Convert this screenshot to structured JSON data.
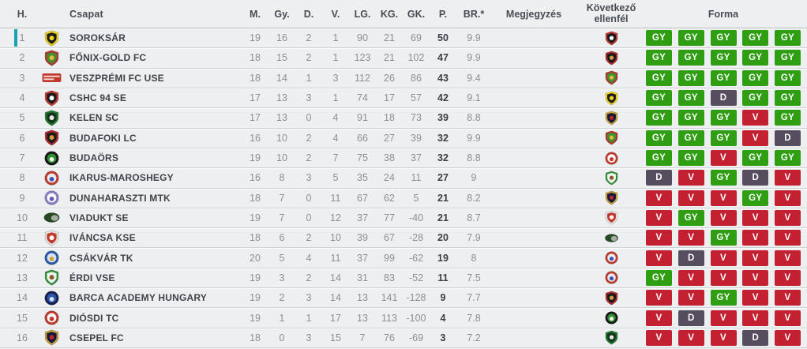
{
  "header": {
    "pos": "H.",
    "team": "Csapat",
    "m": "M.",
    "gy": "Gy.",
    "d": "D.",
    "v": "V.",
    "lg": "LG.",
    "kg": "KG.",
    "gk": "GK.",
    "p": "P.",
    "br": "BR.*",
    "notes": "Megjegyzés",
    "next": "Következő ellenfél",
    "form": "Forma"
  },
  "form_colors": {
    "GY": "#2f9e12",
    "D": "#564d5e",
    "V": "#c32031"
  },
  "accent": {
    "highlight_bar": "#18a2b5",
    "row_line": "#ccd1d4",
    "muted_text": "#8b9096",
    "dark_text": "#3f444a"
  },
  "teams": {
    "soroksar": {
      "shape": "shield",
      "colors": [
        "#f0d41c",
        "#1c1c1c",
        "#f0d41c"
      ]
    },
    "fonix": {
      "shape": "shield",
      "colors": [
        "#b8332a",
        "#3f8f35",
        "#e3bc2e"
      ]
    },
    "veszprem": {
      "shape": "banner",
      "colors": [
        "#c0392b",
        "#ffffff"
      ]
    },
    "cshc": {
      "shape": "shield",
      "colors": [
        "#c23a30",
        "#1a1a1a",
        "#ffffff"
      ]
    },
    "kelen": {
      "shape": "shield",
      "colors": [
        "#1e7a2e",
        "#17351c",
        "#e8e8e8"
      ]
    },
    "budafoki": {
      "shape": "shield",
      "colors": [
        "#b3282d",
        "#1a1a1a",
        "#cf9e3d"
      ]
    },
    "budaors": {
      "shape": "circle",
      "colors": [
        "#141414",
        "#2e8f2e",
        "#f2f2f2"
      ]
    },
    "ikarus": {
      "shape": "circle",
      "colors": [
        "#c0392b",
        "#e8edf4",
        "#3b4fae"
      ]
    },
    "dunaharaszti": {
      "shape": "circle",
      "colors": [
        "#8a7ec2",
        "#ffffff",
        "#6a5bb0"
      ]
    },
    "viadukt": {
      "shape": "oval",
      "colors": [
        "#24481f",
        "#a8aaa4"
      ]
    },
    "ivancsa": {
      "shape": "shield",
      "colors": [
        "#e8e8e8",
        "#c0392b",
        "#ffffff"
      ]
    },
    "csakvar": {
      "shape": "circle",
      "colors": [
        "#2b58a8",
        "#d9e4f0",
        "#c9a23a"
      ]
    },
    "erdi": {
      "shape": "shield",
      "colors": [
        "#2f8f3b",
        "#eef3ee",
        "#8a5a2b"
      ]
    },
    "barca": {
      "shape": "circle",
      "colors": [
        "#16204f",
        "#2f57a8",
        "#d7e0ec"
      ]
    },
    "diosdi": {
      "shape": "circle",
      "colors": [
        "#c0392b",
        "#ffffff",
        "#c0392b"
      ]
    },
    "csepel": {
      "shape": "shield",
      "colors": [
        "#c9a23a",
        "#14163a",
        "#b3282d"
      ]
    }
  },
  "rows": [
    {
      "pos": 1,
      "team": "soroksar",
      "name": "SOROKSÁR",
      "m": 19,
      "gy": 16,
      "d": 2,
      "v": 1,
      "lg": 90,
      "kg": 21,
      "gk": 69,
      "p": 50,
      "br": "9.9",
      "notes": "",
      "next": "cshc",
      "form": [
        "GY",
        "GY",
        "GY",
        "GY",
        "GY"
      ],
      "highlight": true
    },
    {
      "pos": 2,
      "team": "fonix",
      "name": "FŐNIX-GOLD FC",
      "m": 18,
      "gy": 15,
      "d": 2,
      "v": 1,
      "lg": 123,
      "kg": 21,
      "gk": 102,
      "p": 47,
      "br": "9.9",
      "notes": "",
      "next": "budafoki",
      "form": [
        "GY",
        "GY",
        "GY",
        "GY",
        "GY"
      ],
      "highlight": false
    },
    {
      "pos": 3,
      "team": "veszprem",
      "name": "VESZPRÉMI FC USE",
      "m": 18,
      "gy": 14,
      "d": 1,
      "v": 3,
      "lg": 112,
      "kg": 26,
      "gk": 86,
      "p": 43,
      "br": "9.4",
      "notes": "",
      "next": "fonix",
      "form": [
        "GY",
        "GY",
        "GY",
        "GY",
        "GY"
      ],
      "highlight": false
    },
    {
      "pos": 4,
      "team": "cshc",
      "name": "CSHC 94 SE",
      "m": 17,
      "gy": 13,
      "d": 3,
      "v": 1,
      "lg": 74,
      "kg": 17,
      "gk": 57,
      "p": 42,
      "br": "9.1",
      "notes": "",
      "next": "soroksar",
      "form": [
        "GY",
        "GY",
        "D",
        "GY",
        "GY"
      ],
      "highlight": false
    },
    {
      "pos": 5,
      "team": "kelen",
      "name": "KELEN SC",
      "m": 17,
      "gy": 13,
      "d": 0,
      "v": 4,
      "lg": 91,
      "kg": 18,
      "gk": 73,
      "p": 39,
      "br": "8.8",
      "notes": "",
      "next": "csepel",
      "form": [
        "GY",
        "GY",
        "GY",
        "V",
        "GY"
      ],
      "highlight": false
    },
    {
      "pos": 6,
      "team": "budafoki",
      "name": "BUDAFOKI LC",
      "m": 16,
      "gy": 10,
      "d": 2,
      "v": 4,
      "lg": 66,
      "kg": 27,
      "gk": 39,
      "p": 32,
      "br": "9.9",
      "notes": "",
      "next": "fonix",
      "form": [
        "GY",
        "GY",
        "GY",
        "V",
        "D"
      ],
      "highlight": false
    },
    {
      "pos": 7,
      "team": "budaors",
      "name": "BUDAÖRS",
      "m": 19,
      "gy": 10,
      "d": 2,
      "v": 7,
      "lg": 75,
      "kg": 38,
      "gk": 37,
      "p": 32,
      "br": "8.8",
      "notes": "",
      "next": "diosdi",
      "form": [
        "GY",
        "GY",
        "V",
        "GY",
        "GY"
      ],
      "highlight": false
    },
    {
      "pos": 8,
      "team": "ikarus",
      "name": "IKARUS-MAROSHEGY",
      "m": 16,
      "gy": 8,
      "d": 3,
      "v": 5,
      "lg": 35,
      "kg": 24,
      "gk": 11,
      "p": 27,
      "br": "9",
      "notes": "",
      "next": "erdi",
      "form": [
        "D",
        "V",
        "GY",
        "D",
        "V"
      ],
      "highlight": false
    },
    {
      "pos": 9,
      "team": "dunaharaszti",
      "name": "DUNAHARASZTI MTK",
      "m": 18,
      "gy": 7,
      "d": 0,
      "v": 11,
      "lg": 67,
      "kg": 62,
      "gk": 5,
      "p": 21,
      "br": "8.2",
      "notes": "",
      "next": "csepel",
      "form": [
        "V",
        "V",
        "V",
        "GY",
        "V"
      ],
      "highlight": false
    },
    {
      "pos": 10,
      "team": "viadukt",
      "name": "VIADUKT SE",
      "m": 19,
      "gy": 7,
      "d": 0,
      "v": 12,
      "lg": 37,
      "kg": 77,
      "gk": -40,
      "p": 21,
      "br": "8.7",
      "notes": "",
      "next": "ivancsa",
      "form": [
        "V",
        "GY",
        "V",
        "V",
        "V"
      ],
      "highlight": false
    },
    {
      "pos": 11,
      "team": "ivancsa",
      "name": "IVÁNCSA KSE",
      "m": 18,
      "gy": 6,
      "d": 2,
      "v": 10,
      "lg": 39,
      "kg": 67,
      "gk": -28,
      "p": 20,
      "br": "7.9",
      "notes": "",
      "next": "viadukt",
      "form": [
        "V",
        "V",
        "GY",
        "V",
        "V"
      ],
      "highlight": false
    },
    {
      "pos": 12,
      "team": "csakvar",
      "name": "CSÁKVÁR TK",
      "m": 20,
      "gy": 5,
      "d": 4,
      "v": 11,
      "lg": 37,
      "kg": 99,
      "gk": -62,
      "p": 19,
      "br": "8",
      "notes": "",
      "next": "ikarus",
      "form": [
        "V",
        "D",
        "V",
        "V",
        "V"
      ],
      "highlight": false
    },
    {
      "pos": 13,
      "team": "erdi",
      "name": "ÉRDI VSE",
      "m": 19,
      "gy": 3,
      "d": 2,
      "v": 14,
      "lg": 31,
      "kg": 83,
      "gk": -52,
      "p": 11,
      "br": "7.5",
      "notes": "",
      "next": "ikarus",
      "form": [
        "GY",
        "V",
        "V",
        "V",
        "V"
      ],
      "highlight": false
    },
    {
      "pos": 14,
      "team": "barca",
      "name": "BARCA ACADEMY HUNGARY",
      "m": 19,
      "gy": 2,
      "d": 3,
      "v": 14,
      "lg": 13,
      "kg": 141,
      "gk": -128,
      "p": 9,
      "br": "7.7",
      "notes": "",
      "next": "budafoki",
      "form": [
        "V",
        "V",
        "GY",
        "V",
        "V"
      ],
      "highlight": false
    },
    {
      "pos": 15,
      "team": "diosdi",
      "name": "DIÓSDI TC",
      "m": 19,
      "gy": 1,
      "d": 1,
      "v": 17,
      "lg": 13,
      "kg": 113,
      "gk": -100,
      "p": 4,
      "br": "7.8",
      "notes": "",
      "next": "budaors",
      "form": [
        "V",
        "D",
        "V",
        "V",
        "V"
      ],
      "highlight": false
    },
    {
      "pos": 16,
      "team": "csepel",
      "name": "CSEPEL FC",
      "m": 18,
      "gy": 0,
      "d": 3,
      "v": 15,
      "lg": 7,
      "kg": 76,
      "gk": -69,
      "p": 3,
      "br": "7.2",
      "notes": "",
      "next": "kelen",
      "form": [
        "V",
        "V",
        "V",
        "D",
        "V"
      ],
      "highlight": false
    }
  ]
}
